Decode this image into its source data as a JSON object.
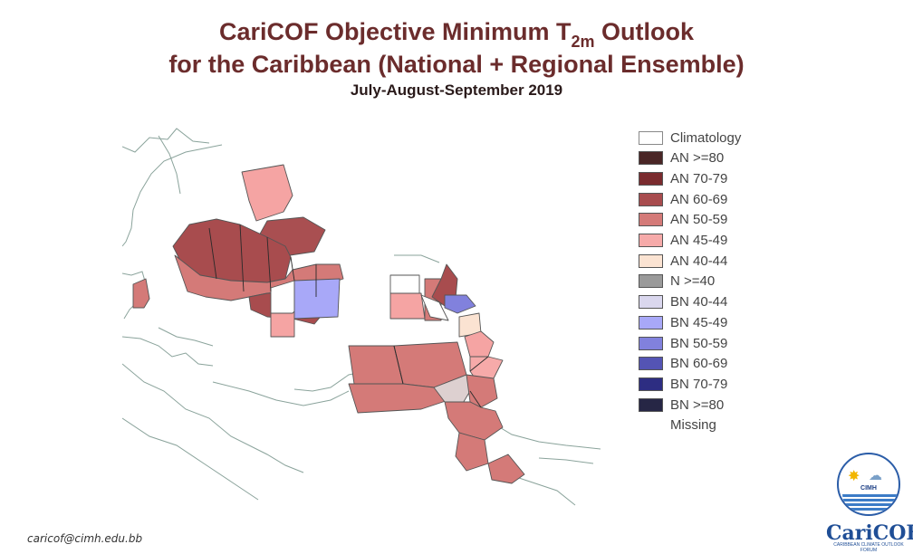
{
  "title": {
    "line1_pre": "CariCOF Objective Minimum T",
    "line1_sub": "2m",
    "line1_post": " Outlook",
    "line2": "for the Caribbean (National + Regional Ensemble)",
    "period": "July-August-September 2019"
  },
  "legend": [
    {
      "label": "Climatology",
      "color": "#ffffff"
    },
    {
      "label": "AN  >=80",
      "color": "#4a2626"
    },
    {
      "label": "AN  70-79",
      "color": "#7a2b2e"
    },
    {
      "label": "AN  60-69",
      "color": "#a84c4e"
    },
    {
      "label": "AN  50-59",
      "color": "#d47a78"
    },
    {
      "label": "AN  45-49",
      "color": "#f6aaa9"
    },
    {
      "label": "AN  40-44",
      "color": "#fbe3d2"
    },
    {
      "label": "N  >=40",
      "color": "#9a9a9a"
    },
    {
      "label": "BN  40-44",
      "color": "#dad7ee"
    },
    {
      "label": "BN  45-49",
      "color": "#a8a8f8"
    },
    {
      "label": "BN  50-59",
      "color": "#8181dd"
    },
    {
      "label": "BN  60-69",
      "color": "#5454b4"
    },
    {
      "label": "BN  70-79",
      "color": "#2d2d82"
    },
    {
      "label": "BN  >=80",
      "color": "#262645"
    },
    {
      "label": "Missing",
      "color": ""
    }
  ],
  "footer": "caricof@cimh.edu.bb",
  "logo": {
    "emblem_text": "CIMH",
    "name": "CariCOF",
    "tagline": "CARIBBEAN CLIMATE OUTLOOK FORUM"
  }
}
